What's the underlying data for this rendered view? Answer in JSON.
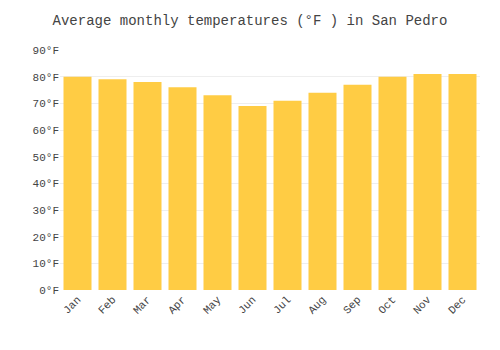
{
  "chart_data": {
    "type": "bar",
    "title": "Average monthly temperatures (°F ) in San Pedro",
    "categories": [
      "Jan",
      "Feb",
      "Mar",
      "Apr",
      "May",
      "Jun",
      "Jul",
      "Aug",
      "Sep",
      "Oct",
      "Nov",
      "Dec"
    ],
    "values": [
      80,
      79,
      78,
      76,
      73,
      69,
      71,
      74,
      77,
      80,
      81,
      81
    ],
    "color": "#FFCC44",
    "ylim": [
      0,
      90
    ],
    "yticks": [
      {
        "value": 0,
        "label": "0°F"
      },
      {
        "value": 10,
        "label": "10°F"
      },
      {
        "value": 20,
        "label": "20°F"
      },
      {
        "value": 30,
        "label": "30°F"
      },
      {
        "value": 40,
        "label": "40°F"
      },
      {
        "value": 50,
        "label": "50°F"
      },
      {
        "value": 60,
        "label": "60°F"
      },
      {
        "value": 70,
        "label": "70°F"
      },
      {
        "value": 80,
        "label": "80°F"
      },
      {
        "value": 90,
        "label": "90°F"
      }
    ],
    "grid": true
  }
}
